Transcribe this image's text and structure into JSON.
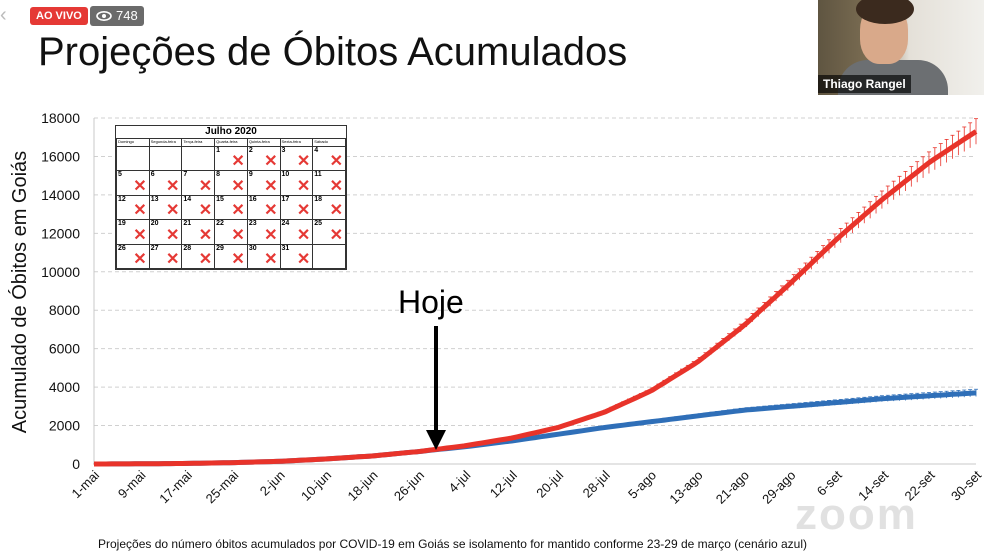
{
  "header": {
    "live_badge": "AO VIVO",
    "viewer_count": "748"
  },
  "slide": {
    "title": "Projeções de Óbitos Acumulados",
    "caption": "Projeções do número óbitos acumulados por COVID-19 em Goiás se isolamento for mantido conforme 23-29 de março (cenário azul)",
    "today_label": "Hoje"
  },
  "camera": {
    "speaker_name": "Thiago Rangel"
  },
  "calendar": {
    "title": "Julho 2020",
    "weekdays": [
      "Domingo",
      "Segunda-feira",
      "Terça-feira",
      "Quarta-feira",
      "Quinta-feira",
      "Sexta-feira",
      "Sábado"
    ],
    "weeks": [
      [
        "",
        "",
        "",
        "1",
        "2",
        "3",
        "4"
      ],
      [
        "5",
        "6",
        "7",
        "8",
        "9",
        "10",
        "11"
      ],
      [
        "12",
        "13",
        "14",
        "15",
        "16",
        "17",
        "18"
      ],
      [
        "19",
        "20",
        "21",
        "22",
        "23",
        "24",
        "25"
      ],
      [
        "26",
        "27",
        "28",
        "29",
        "30",
        "31",
        ""
      ]
    ],
    "crossed_out": true
  },
  "watermark": "zoom",
  "colors": {
    "red_series": "#e8332a",
    "blue_series": "#2f6fb8",
    "live": "#e53935"
  },
  "chart_data": {
    "type": "line",
    "title": "",
    "xlabel": "",
    "ylabel": "Acumulado de Óbitos em Goiás",
    "ylim": [
      0,
      18000
    ],
    "yticks": [
      0,
      2000,
      4000,
      6000,
      8000,
      10000,
      12000,
      14000,
      16000,
      18000
    ],
    "grid": true,
    "x": [
      "1-mai",
      "9-mai",
      "17-mai",
      "25-mai",
      "2-jun",
      "10-jun",
      "18-jun",
      "26-jun",
      "4-jul",
      "12-jul",
      "20-jul",
      "28-jul",
      "5-ago",
      "13-ago",
      "21-ago",
      "29-ago",
      "6-set",
      "14-set",
      "22-set",
      "30-set"
    ],
    "series": [
      {
        "color": "red",
        "values": [
          0,
          10,
          30,
          70,
          140,
          260,
          420,
          650,
          950,
          1350,
          1900,
          2700,
          3800,
          5300,
          7200,
          9400,
          11700,
          13800,
          15700,
          17300
        ]
      },
      {
        "color": "blue",
        "values": [
          0,
          10,
          30,
          70,
          140,
          260,
          420,
          650,
          900,
          1200,
          1550,
          1900,
          2200,
          2500,
          2800,
          3000,
          3200,
          3400,
          3550,
          3700
        ]
      }
    ],
    "annotations": [
      "Hoje"
    ]
  }
}
